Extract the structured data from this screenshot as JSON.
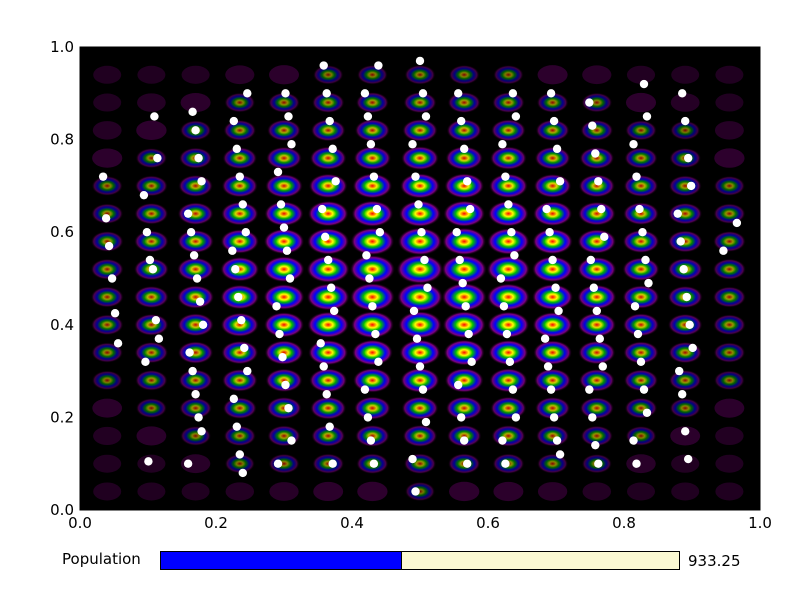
{
  "chart_data": {
    "type": "scatter",
    "title": "",
    "xlabel": "",
    "ylabel": "",
    "xlim": [
      0,
      1
    ],
    "ylim": [
      0,
      1
    ],
    "xticks": [
      "0.0",
      "0.2",
      "0.4",
      "0.6",
      "0.8",
      "1.0"
    ],
    "yticks": [
      "0.0",
      "0.2",
      "0.4",
      "0.6",
      "0.8",
      "1.0"
    ],
    "grid": false,
    "background": {
      "type": "heatmap",
      "description_colormap": "black-purple-blue-green-yellow-red",
      "columns_x": [
        0.04,
        0.105,
        0.17,
        0.235,
        0.3,
        0.365,
        0.43,
        0.5,
        0.565,
        0.63,
        0.695,
        0.76,
        0.825,
        0.89,
        0.955
      ],
      "rows_y": [
        0.04,
        0.1,
        0.16,
        0.22,
        0.28,
        0.34,
        0.4,
        0.46,
        0.52,
        0.58,
        0.64,
        0.7,
        0.76,
        0.82,
        0.88,
        0.94
      ],
      "center": [
        0.5,
        0.5
      ],
      "colors": [
        "#000000",
        "#3a003a",
        "#800080",
        "#0000ff",
        "#00c000",
        "#ffff00",
        "#ff0000"
      ]
    },
    "points_color": "#ffffff",
    "series": [
      {
        "columns": [
          {
            "x": 0.045,
            "y": [
              0.72,
              0.63,
              0.57,
              0.5,
              0.425,
              0.36
            ]
          },
          {
            "x": 0.105,
            "y": [
              0.85,
              0.76,
              0.68,
              0.6,
              0.54,
              0.52,
              0.41,
              0.37,
              0.32,
              0.105
            ]
          },
          {
            "x": 0.17,
            "y": [
              0.86,
              0.82,
              0.76,
              0.71,
              0.64,
              0.6,
              0.55,
              0.5,
              0.45,
              0.4,
              0.34,
              0.3,
              0.25,
              0.2,
              0.17,
              0.1
            ]
          },
          {
            "x": 0.235,
            "y": [
              0.9,
              0.84,
              0.78,
              0.72,
              0.66,
              0.6,
              0.56,
              0.52,
              0.46,
              0.41,
              0.35,
              0.3,
              0.24,
              0.18,
              0.12,
              0.08
            ]
          },
          {
            "x": 0.3,
            "y": [
              0.9,
              0.85,
              0.79,
              0.73,
              0.66,
              0.61,
              0.56,
              0.5,
              0.44,
              0.38,
              0.33,
              0.27,
              0.22,
              0.15,
              0.1
            ]
          },
          {
            "x": 0.365,
            "y": [
              0.96,
              0.9,
              0.84,
              0.78,
              0.71,
              0.65,
              0.59,
              0.54,
              0.48,
              0.43,
              0.36,
              0.31,
              0.25,
              0.18,
              0.1
            ]
          },
          {
            "x": 0.43,
            "y": [
              0.96,
              0.9,
              0.85,
              0.79,
              0.72,
              0.65,
              0.6,
              0.55,
              0.5,
              0.44,
              0.38,
              0.32,
              0.26,
              0.2,
              0.15,
              0.1
            ]
          },
          {
            "x": 0.5,
            "y": [
              0.97,
              0.9,
              0.85,
              0.79,
              0.72,
              0.66,
              0.6,
              0.54,
              0.48,
              0.43,
              0.37,
              0.31,
              0.26,
              0.19,
              0.11,
              0.04
            ]
          },
          {
            "x": 0.565,
            "y": [
              0.9,
              0.84,
              0.78,
              0.71,
              0.65,
              0.6,
              0.54,
              0.49,
              0.44,
              0.38,
              0.32,
              0.27,
              0.2,
              0.15,
              0.1
            ]
          },
          {
            "x": 0.63,
            "y": [
              0.9,
              0.85,
              0.79,
              0.72,
              0.66,
              0.6,
              0.55,
              0.5,
              0.44,
              0.38,
              0.32,
              0.26,
              0.2,
              0.15,
              0.1
            ]
          },
          {
            "x": 0.695,
            "y": [
              0.9,
              0.84,
              0.78,
              0.71,
              0.65,
              0.6,
              0.54,
              0.48,
              0.43,
              0.37,
              0.31,
              0.26,
              0.2,
              0.15,
              0.12
            ]
          },
          {
            "x": 0.76,
            "y": [
              0.88,
              0.83,
              0.77,
              0.71,
              0.65,
              0.59,
              0.54,
              0.48,
              0.43,
              0.37,
              0.31,
              0.26,
              0.2,
              0.14,
              0.1
            ]
          },
          {
            "x": 0.825,
            "y": [
              0.92,
              0.85,
              0.79,
              0.72,
              0.65,
              0.6,
              0.54,
              0.49,
              0.44,
              0.38,
              0.32,
              0.26,
              0.21,
              0.15,
              0.1
            ]
          },
          {
            "x": 0.89,
            "y": [
              0.9,
              0.84,
              0.76,
              0.7,
              0.64,
              0.58,
              0.52,
              0.46,
              0.4,
              0.35,
              0.3,
              0.25,
              0.17,
              0.11
            ]
          },
          {
            "x": 0.955,
            "y": [
              0.62,
              0.56
            ]
          }
        ]
      }
    ]
  },
  "population": {
    "label": "Population",
    "value_text": "933.25",
    "fraction": 0.465,
    "fill_color": "#0000ff",
    "track_color": "#fbf9d3"
  }
}
